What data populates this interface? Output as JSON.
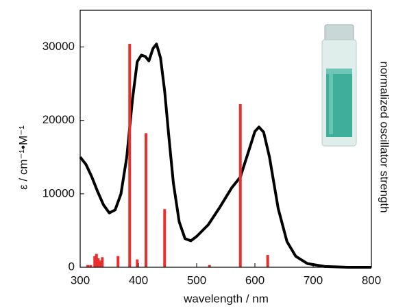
{
  "chart_data": {
    "type": "line",
    "xlabel": "wavelength / nm",
    "ylabel": "ε / cm⁻¹•M⁻¹",
    "y2label": "normalized oscillator strength",
    "xlim": [
      300,
      800
    ],
    "xticks": [
      300,
      400,
      500,
      600,
      700,
      800
    ],
    "ylim": [
      0,
      35000
    ],
    "yticks": [
      0,
      10000,
      20000,
      30000
    ],
    "y2lim": [
      0,
      1.15
    ],
    "series": [
      {
        "type": "line",
        "color": "#000000",
        "x": [
          300,
          310,
          320,
          330,
          340,
          350,
          360,
          370,
          380,
          390,
          398,
          405,
          412,
          418,
          425,
          431,
          438,
          445,
          452,
          460,
          470,
          480,
          490,
          500,
          520,
          540,
          560,
          575,
          590,
          600,
          607,
          615,
          625,
          640,
          655,
          670,
          690,
          720,
          760,
          800
        ],
        "values": [
          15000,
          14000,
          12300,
          10300,
          8500,
          7400,
          7800,
          10000,
          15000,
          23000,
          28000,
          28900,
          28700,
          28100,
          29800,
          30400,
          28500,
          24000,
          18000,
          11500,
          6200,
          3900,
          3600,
          4200,
          5800,
          8200,
          10800,
          12300,
          16000,
          18500,
          19100,
          18400,
          15000,
          8000,
          3500,
          1500,
          500,
          100,
          0,
          0
        ]
      },
      {
        "type": "stick",
        "axis": "y2",
        "color": "#e8312f",
        "x": [
          313,
          318,
          325,
          328,
          331,
          335,
          338,
          365,
          385,
          398,
          413,
          445,
          522,
          575,
          622
        ],
        "values": [
          0.01,
          0.01,
          0.05,
          0.06,
          0.04,
          0.03,
          0.045,
          0.05,
          1.0,
          0.035,
          0.6,
          0.26,
          0.01,
          0.73,
          0.055
        ]
      }
    ]
  }
}
